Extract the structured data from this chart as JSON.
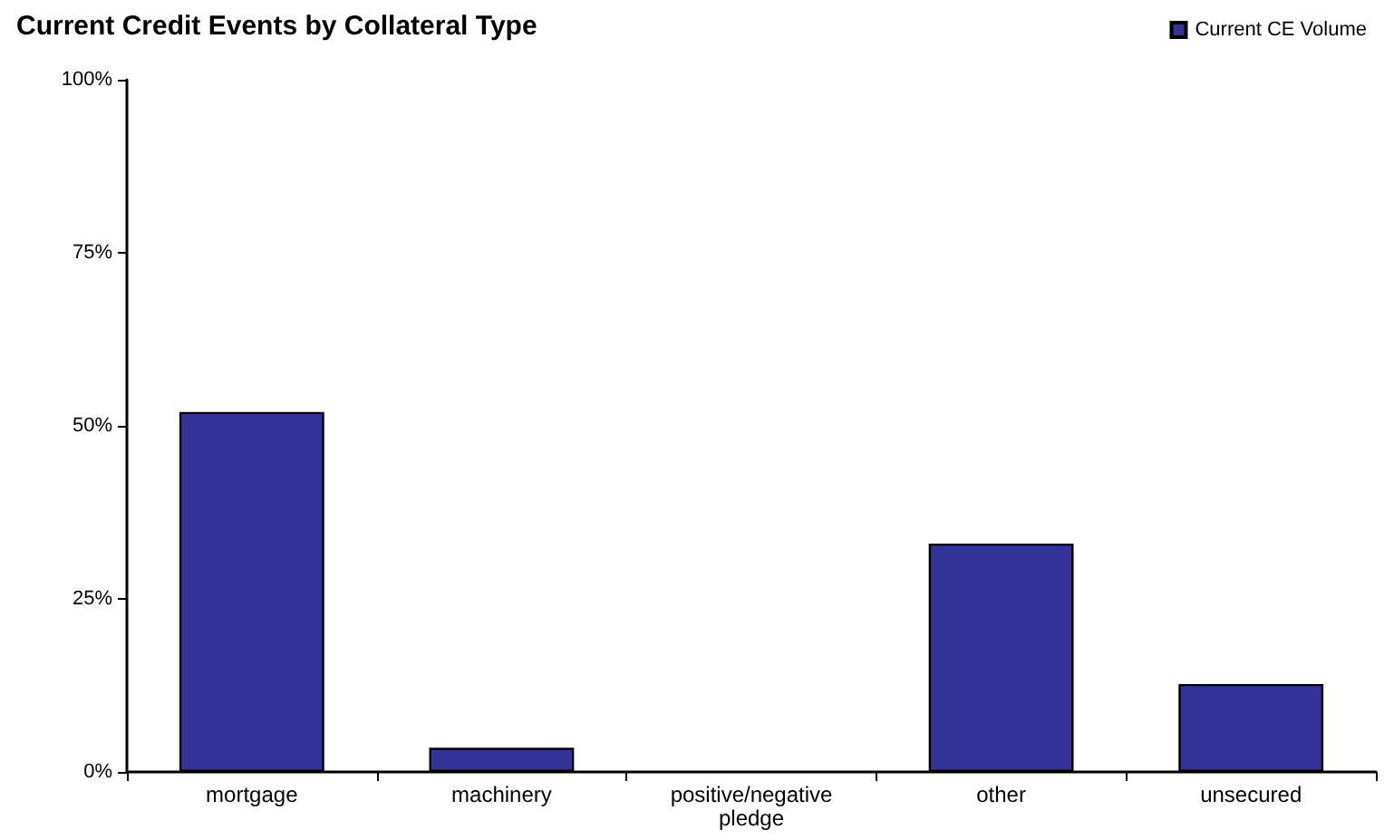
{
  "chart_data": {
    "type": "bar",
    "title": "Current Credit Events by Collateral Type",
    "categories": [
      "mortgage",
      "machinery",
      "positive/negative\npledge",
      "other",
      "unsecured"
    ],
    "series": [
      {
        "name": "Current CE Volume",
        "color": "#333399",
        "values": [
          52,
          3.5,
          0,
          33,
          12.7
        ]
      }
    ],
    "ylim": [
      0,
      100
    ],
    "yticks": [
      {
        "value": 0,
        "label": "0%"
      },
      {
        "value": 25,
        "label": "25%"
      },
      {
        "value": 50,
        "label": "50%"
      },
      {
        "value": 75,
        "label": "75%"
      },
      {
        "value": 100,
        "label": "100%"
      }
    ],
    "grid": false,
    "legend": "top right"
  }
}
